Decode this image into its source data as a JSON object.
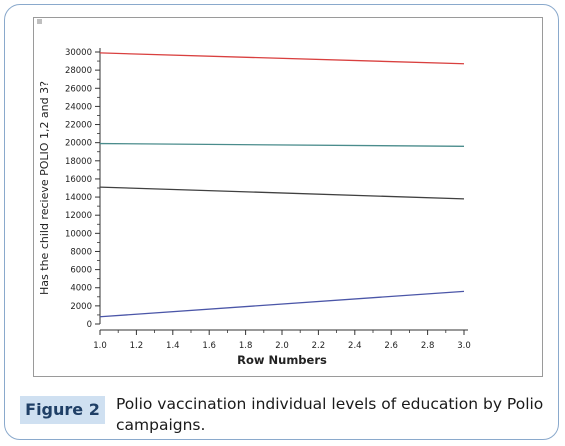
{
  "caption": {
    "label": "Figure 2",
    "text": "Polio vaccination individual levels of education by Polio campaigns."
  },
  "chart_data": {
    "type": "line",
    "xlabel": "Row Numbers",
    "ylabel": "Has the child recieve POLIO 1,2 and 3?",
    "xlim": [
      1.0,
      3.0
    ],
    "ylim": [
      0,
      30000
    ],
    "xticks": [
      "1.0",
      "1.2",
      "1.4",
      "1.6",
      "1.8",
      "2.0",
      "2.2",
      "2.4",
      "2.6",
      "2.8",
      "3.0"
    ],
    "yticks": [
      "0",
      "2000",
      "4000",
      "6000",
      "8000",
      "10000",
      "12000",
      "14000",
      "16000",
      "18000",
      "20000",
      "22000",
      "24000",
      "26000",
      "28000",
      "30000"
    ],
    "grid": false,
    "series": [
      {
        "color": "#d9403f",
        "x": [
          1.0,
          3.0
        ],
        "values": [
          29900,
          28700
        ]
      },
      {
        "color": "#4a8c8c",
        "x": [
          1.0,
          3.0
        ],
        "values": [
          19900,
          19600
        ]
      },
      {
        "color": "#404040",
        "x": [
          1.0,
          3.0
        ],
        "values": [
          15100,
          13800
        ]
      },
      {
        "color": "#4b56a8",
        "x": [
          1.0,
          3.0
        ],
        "values": [
          800,
          3600
        ]
      }
    ]
  }
}
